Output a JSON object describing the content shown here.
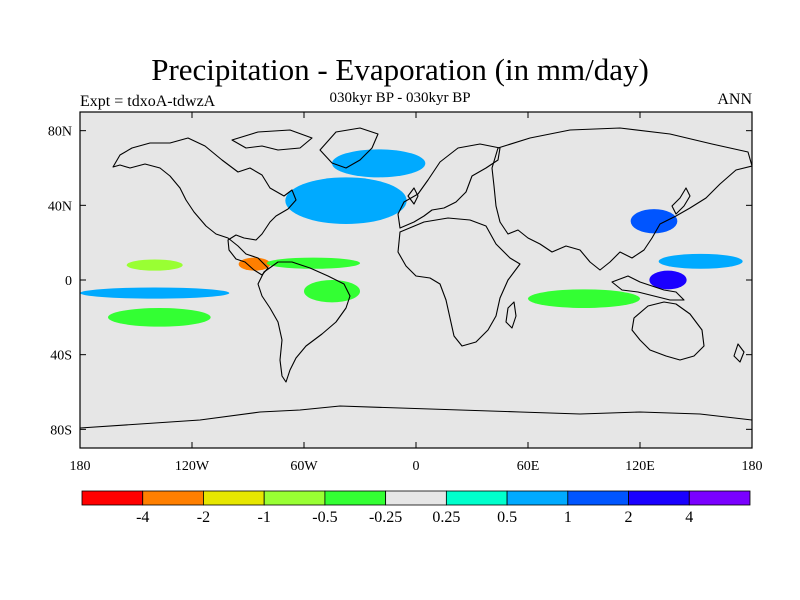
{
  "figure": {
    "title": "Precipitation - Evaporation (in mm/day)",
    "subtitle": "030kyr BP - 030kyr BP",
    "left_label": "Expt = tdxoA-tdwzA",
    "right_label": "ANN"
  },
  "map": {
    "projection": "cylindrical-equidistant",
    "lon_range": [
      -180,
      180
    ],
    "lat_range": [
      -90,
      90
    ],
    "background_color": "#e6e6e6",
    "coastline_color": "#000000",
    "x_ticks": [
      {
        "lon": -180,
        "label": "180"
      },
      {
        "lon": -120,
        "label": "120W"
      },
      {
        "lon": -60,
        "label": "60W"
      },
      {
        "lon": 0,
        "label": "0"
      },
      {
        "lon": 60,
        "label": "60E"
      },
      {
        "lon": 120,
        "label": "120E"
      },
      {
        "lon": 180,
        "label": "180"
      }
    ],
    "y_ticks": [
      {
        "lat": 80,
        "label": "80N"
      },
      {
        "lat": 40,
        "label": "40N"
      },
      {
        "lat": 0,
        "label": "0"
      },
      {
        "lat": -40,
        "label": "40S"
      },
      {
        "lat": -80,
        "label": "80S"
      }
    ]
  },
  "colorbar": {
    "colors": [
      "#ff0000",
      "#ff7f00",
      "#e6e600",
      "#99ff33",
      "#33ff33",
      "#e6e6e6",
      "#00ffcc",
      "#00aaff",
      "#0055ff",
      "#1a00ff",
      "#7a00ff"
    ],
    "labels": [
      "-4",
      "-2",
      "-1",
      "-0.5",
      "-0.25",
      "0.25",
      "0.5",
      "1",
      "2",
      "4"
    ]
  },
  "chart_data": {
    "type": "heatmap",
    "title": "Precipitation - Evaporation (in mm/day)",
    "subtitle": "030kyr BP - 030kyr BP",
    "x_range": [
      -180,
      180
    ],
    "y_range": [
      -90,
      90
    ],
    "levels": [
      -4,
      -2,
      -1,
      -0.5,
      -0.25,
      0.25,
      0.5,
      1,
      2,
      4
    ],
    "anomaly_regions": [
      {
        "lon": [
          -95,
          -78
        ],
        "lat": [
          5,
          12
        ],
        "value": -2.5
      },
      {
        "lon": [
          -155,
          -125
        ],
        "lat": [
          5,
          11
        ],
        "value": -1
      },
      {
        "lon": [
          -80,
          -30
        ],
        "lat": [
          6,
          12
        ],
        "value": -0.4
      },
      {
        "lon": [
          -70,
          -5
        ],
        "lat": [
          30,
          55
        ],
        "value": 0.7
      },
      {
        "lon": [
          -45,
          5
        ],
        "lat": [
          55,
          70
        ],
        "value": 0.7
      },
      {
        "lon": [
          -180,
          -100
        ],
        "lat": [
          -10,
          -4
        ],
        "value": 0.7
      },
      {
        "lon": [
          60,
          120
        ],
        "lat": [
          -15,
          -5
        ],
        "value": -0.4
      },
      {
        "lon": [
          125,
          145
        ],
        "lat": [
          -5,
          5
        ],
        "value": 2.5
      },
      {
        "lon": [
          130,
          175
        ],
        "lat": [
          6,
          14
        ],
        "value": 0.7
      },
      {
        "lon": [
          115,
          140
        ],
        "lat": [
          25,
          38
        ],
        "value": 1.2
      },
      {
        "lon": [
          -165,
          -110
        ],
        "lat": [
          -25,
          -15
        ],
        "value": -0.4
      },
      {
        "lon": [
          -60,
          -30
        ],
        "lat": [
          -12,
          0
        ],
        "value": -0.4
      }
    ]
  }
}
